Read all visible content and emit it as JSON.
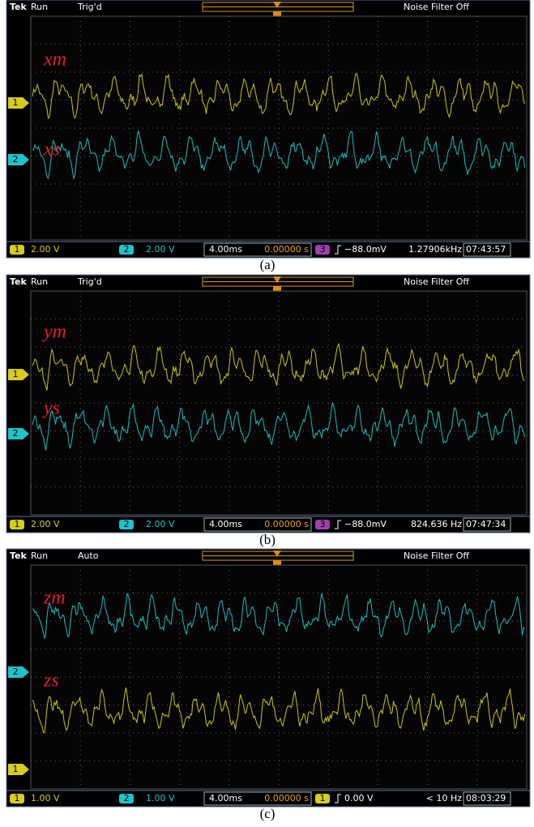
{
  "panels": [
    {
      "brand": "Tek",
      "state": "Run",
      "trigger": "Trig'd",
      "filter": "Noise Filter Off",
      "markers": [
        "1",
        "2"
      ],
      "signals": [
        "xm",
        "xs"
      ],
      "status": {
        "ch_a": "1",
        "scale_a": "2.00 V",
        "ch_b": "2",
        "scale_b": "2.00 V",
        "timebase": "4.00ms",
        "delay": "0.00000 s",
        "trig_source": "3",
        "trig_level": "−88.0mV",
        "frequency": "1.27906kHz",
        "time": "07:43:57"
      },
      "caption": "(a)"
    },
    {
      "brand": "Tek",
      "state": "Run",
      "trigger": "Trig'd",
      "filter": "Noise Filter Off",
      "markers": [
        "1",
        "2"
      ],
      "signals": [
        "ym",
        "ys"
      ],
      "status": {
        "ch_a": "1",
        "scale_a": "2.00 V",
        "ch_b": "2",
        "scale_b": "2.00 V",
        "timebase": "4.00ms",
        "delay": "0.00000 s",
        "trig_source": "3",
        "trig_level": "−88.0mV",
        "frequency": "824.636 Hz",
        "time": "07:47:34"
      },
      "caption": "(b)"
    },
    {
      "brand": "Tek",
      "state": "Run",
      "trigger": "Auto",
      "filter": "Noise Filter Off",
      "markers": [
        "2",
        "1"
      ],
      "signals": [
        "zm",
        "zs"
      ],
      "status": {
        "ch_a": "1",
        "scale_a": "1.00 V",
        "ch_b": "2",
        "scale_b": "1.00 V",
        "timebase": "4.00ms",
        "delay": "0.00000 s",
        "trig_source": "1",
        "trig_level": "0.00 V",
        "frequency": "< 10 Hz",
        "time": "08:03:29"
      },
      "caption": "(c)"
    }
  ]
}
